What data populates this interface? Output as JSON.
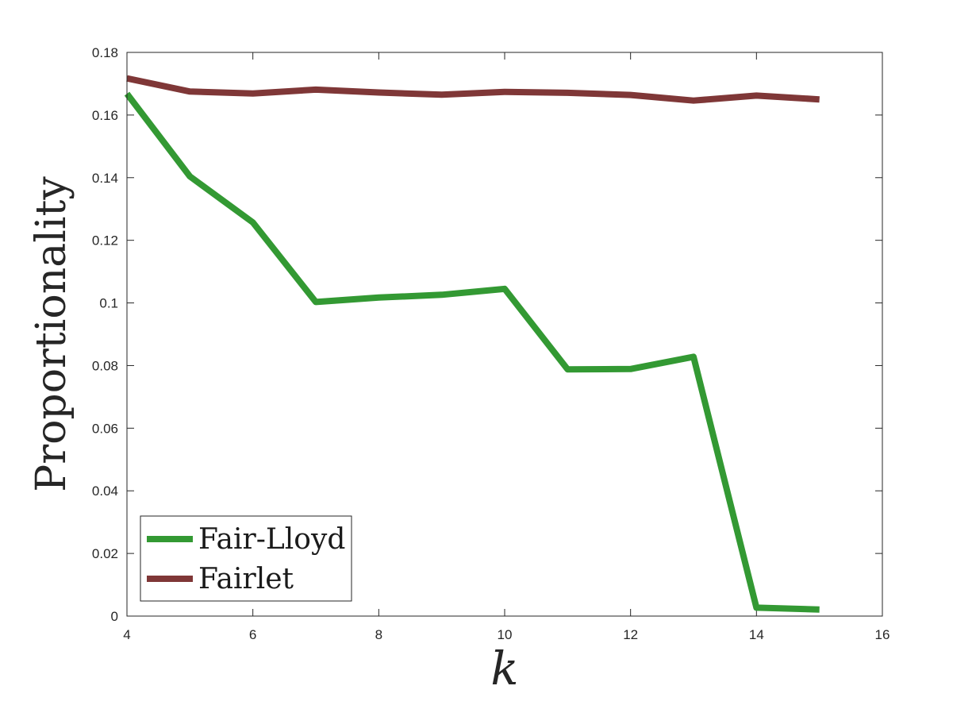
{
  "chart_data": {
    "type": "line",
    "xlabel": "k",
    "ylabel": "Proportionality",
    "xlim": [
      4,
      16
    ],
    "ylim": [
      0,
      0.18
    ],
    "xticks": [
      "4",
      "6",
      "8",
      "10",
      "12",
      "14",
      "16"
    ],
    "yticks": [
      "0",
      "0.02",
      "0.04",
      "0.06",
      "0.08",
      "0.1",
      "0.12",
      "0.14",
      "0.16",
      "0.18"
    ],
    "legend_position": "bottom-left",
    "grid": false,
    "x": [
      4,
      5,
      6,
      7,
      8,
      9,
      10,
      11,
      12,
      13,
      14,
      15
    ],
    "series": [
      {
        "name": "Fair-Lloyd",
        "color": "#339933",
        "values": [
          0.1668,
          0.1404,
          0.1257,
          0.1003,
          0.1017,
          0.1026,
          0.1045,
          0.0788,
          0.0789,
          0.0828,
          0.0027,
          0.0021
        ]
      },
      {
        "name": "Fairlet",
        "color": "#7f3737",
        "values": [
          0.1717,
          0.1675,
          0.1669,
          0.1681,
          0.1672,
          0.1665,
          0.1674,
          0.1671,
          0.1664,
          0.1646,
          0.1662,
          0.165
        ]
      }
    ]
  }
}
